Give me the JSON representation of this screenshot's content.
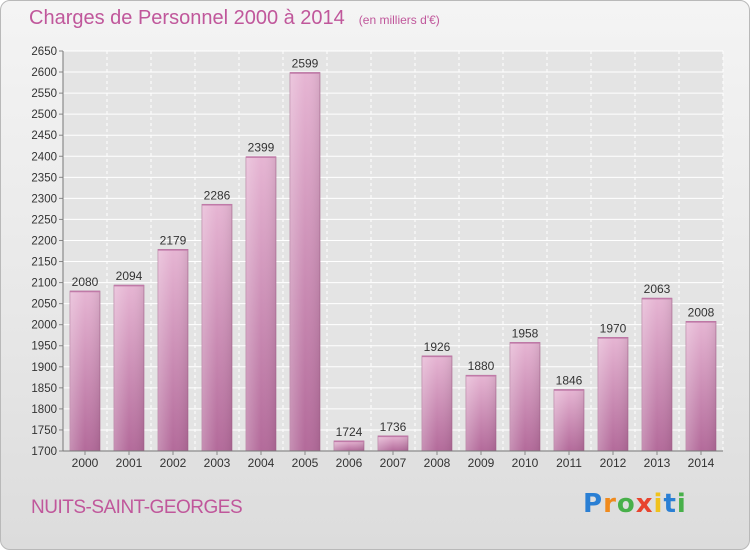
{
  "title": "Charges de Personnel 2000 à 2014",
  "subtitle": "(en milliers d'€)",
  "location": "NUITS-SAINT-GEORGES",
  "logo": {
    "letters": [
      "P",
      "r",
      "o",
      "x",
      "i",
      "t",
      "i"
    ],
    "colors": [
      "#2a7fd4",
      "#f08a1c",
      "#48b04a",
      "#e8442e",
      "#f0c21c",
      "#2a7fd4",
      "#48b04a"
    ]
  },
  "colors": {
    "bar": "#d490bc",
    "bar_top": "#e5b3d2",
    "bar_bottom": "#b56d9c",
    "text": "#c0579b"
  },
  "chart_data": {
    "type": "bar",
    "categories": [
      "2000",
      "2001",
      "2002",
      "2003",
      "2004",
      "2005",
      "2006",
      "2007",
      "2008",
      "2009",
      "2010",
      "2011",
      "2012",
      "2013",
      "2014"
    ],
    "values": [
      2080,
      2094,
      2179,
      2286,
      2399,
      2599,
      1724,
      1736,
      1926,
      1880,
      1958,
      1846,
      1970,
      2063,
      2008
    ],
    "ylim": [
      1700,
      2650
    ],
    "ytick_step": 50,
    "grid": true
  }
}
